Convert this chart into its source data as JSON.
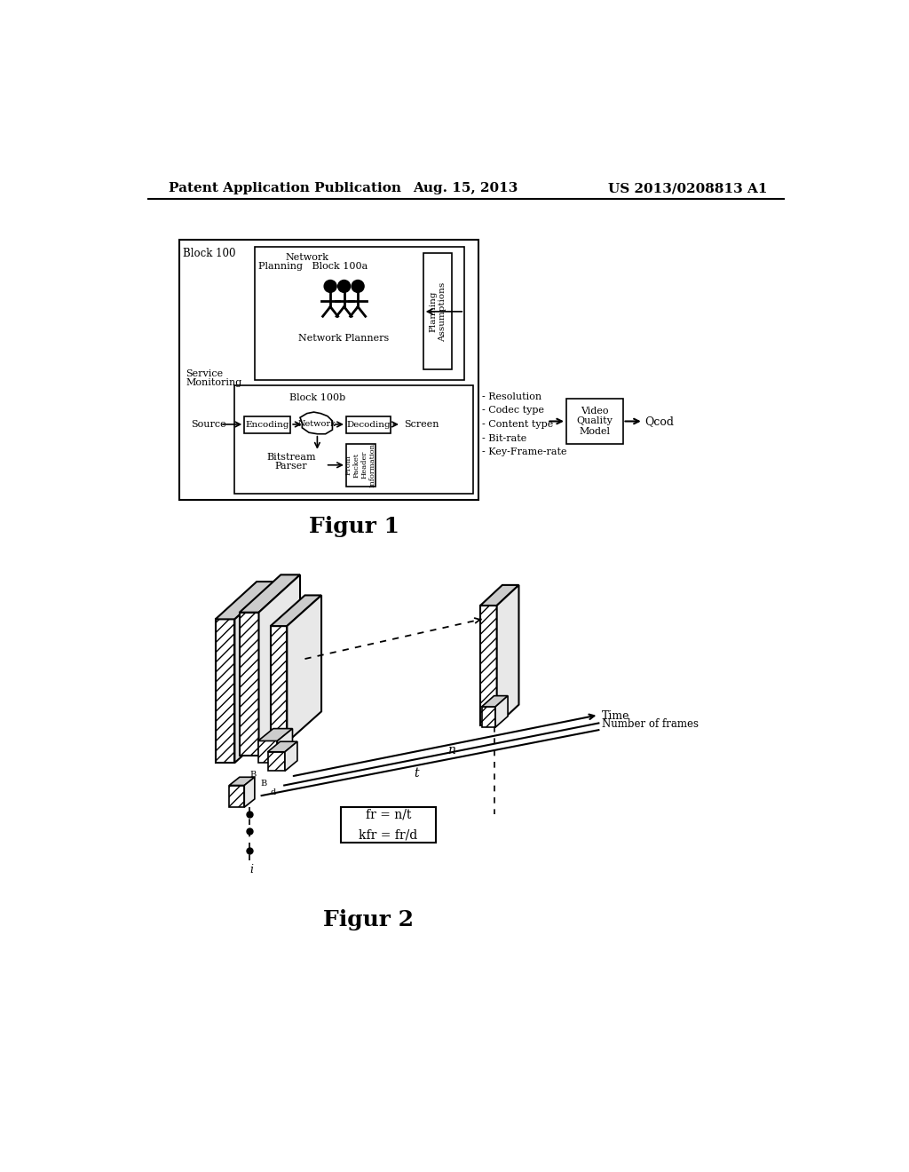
{
  "header_left": "Patent Application Publication",
  "header_center": "Aug. 15, 2013",
  "header_right": "US 2013/0208813 A1",
  "fig1_caption": "Figur 1",
  "fig2_caption": "Figur 2",
  "background_color": "#ffffff",
  "text_color": "#000000",
  "formula_text": "fr = n/t\nkfr = fr/d"
}
